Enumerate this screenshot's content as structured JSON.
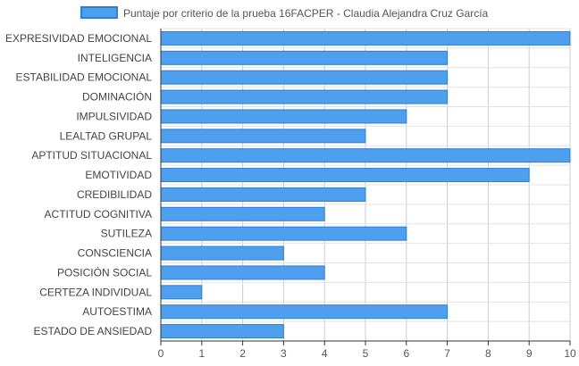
{
  "chart_data": {
    "type": "bar",
    "orientation": "horizontal",
    "categories": [
      "EXPRESIVIDAD EMOCIONAL",
      "INTELIGENCIA",
      "ESTABILIDAD EMOCIONAL",
      "DOMINACIÓN",
      "IMPULSIVIDAD",
      "LEALTAD GRUPAL",
      "APTITUD SITUACIONAL",
      "EMOTIVIDAD",
      "CREDIBILIDAD",
      "ACTITUD COGNITIVA",
      "SUTILEZA",
      "CONSCIENCIA",
      "POSICIÓN SOCIAL",
      "CERTEZA INDIVIDUAL",
      "AUTOESTIMA",
      "ESTADO DE ANSIEDAD"
    ],
    "series": [
      {
        "name": "Puntaje por criterio de la prueba 16FACPER - Claudia Alejandra Cruz García",
        "values": [
          10,
          7,
          7,
          7,
          6,
          5,
          10,
          9,
          5,
          4,
          6,
          3,
          4,
          1,
          7,
          3
        ]
      }
    ],
    "xlim": [
      0,
      10
    ],
    "xticks": [
      "0",
      "1",
      "2",
      "3",
      "4",
      "5",
      "6",
      "7",
      "8",
      "9",
      "10"
    ],
    "grid": true,
    "legend_position": "top-center",
    "colors": {
      "bar_fill": "#4e9fed",
      "bar_stroke": "#2f7fd8",
      "grid": "#cccccc",
      "axis": "#333333"
    }
  }
}
